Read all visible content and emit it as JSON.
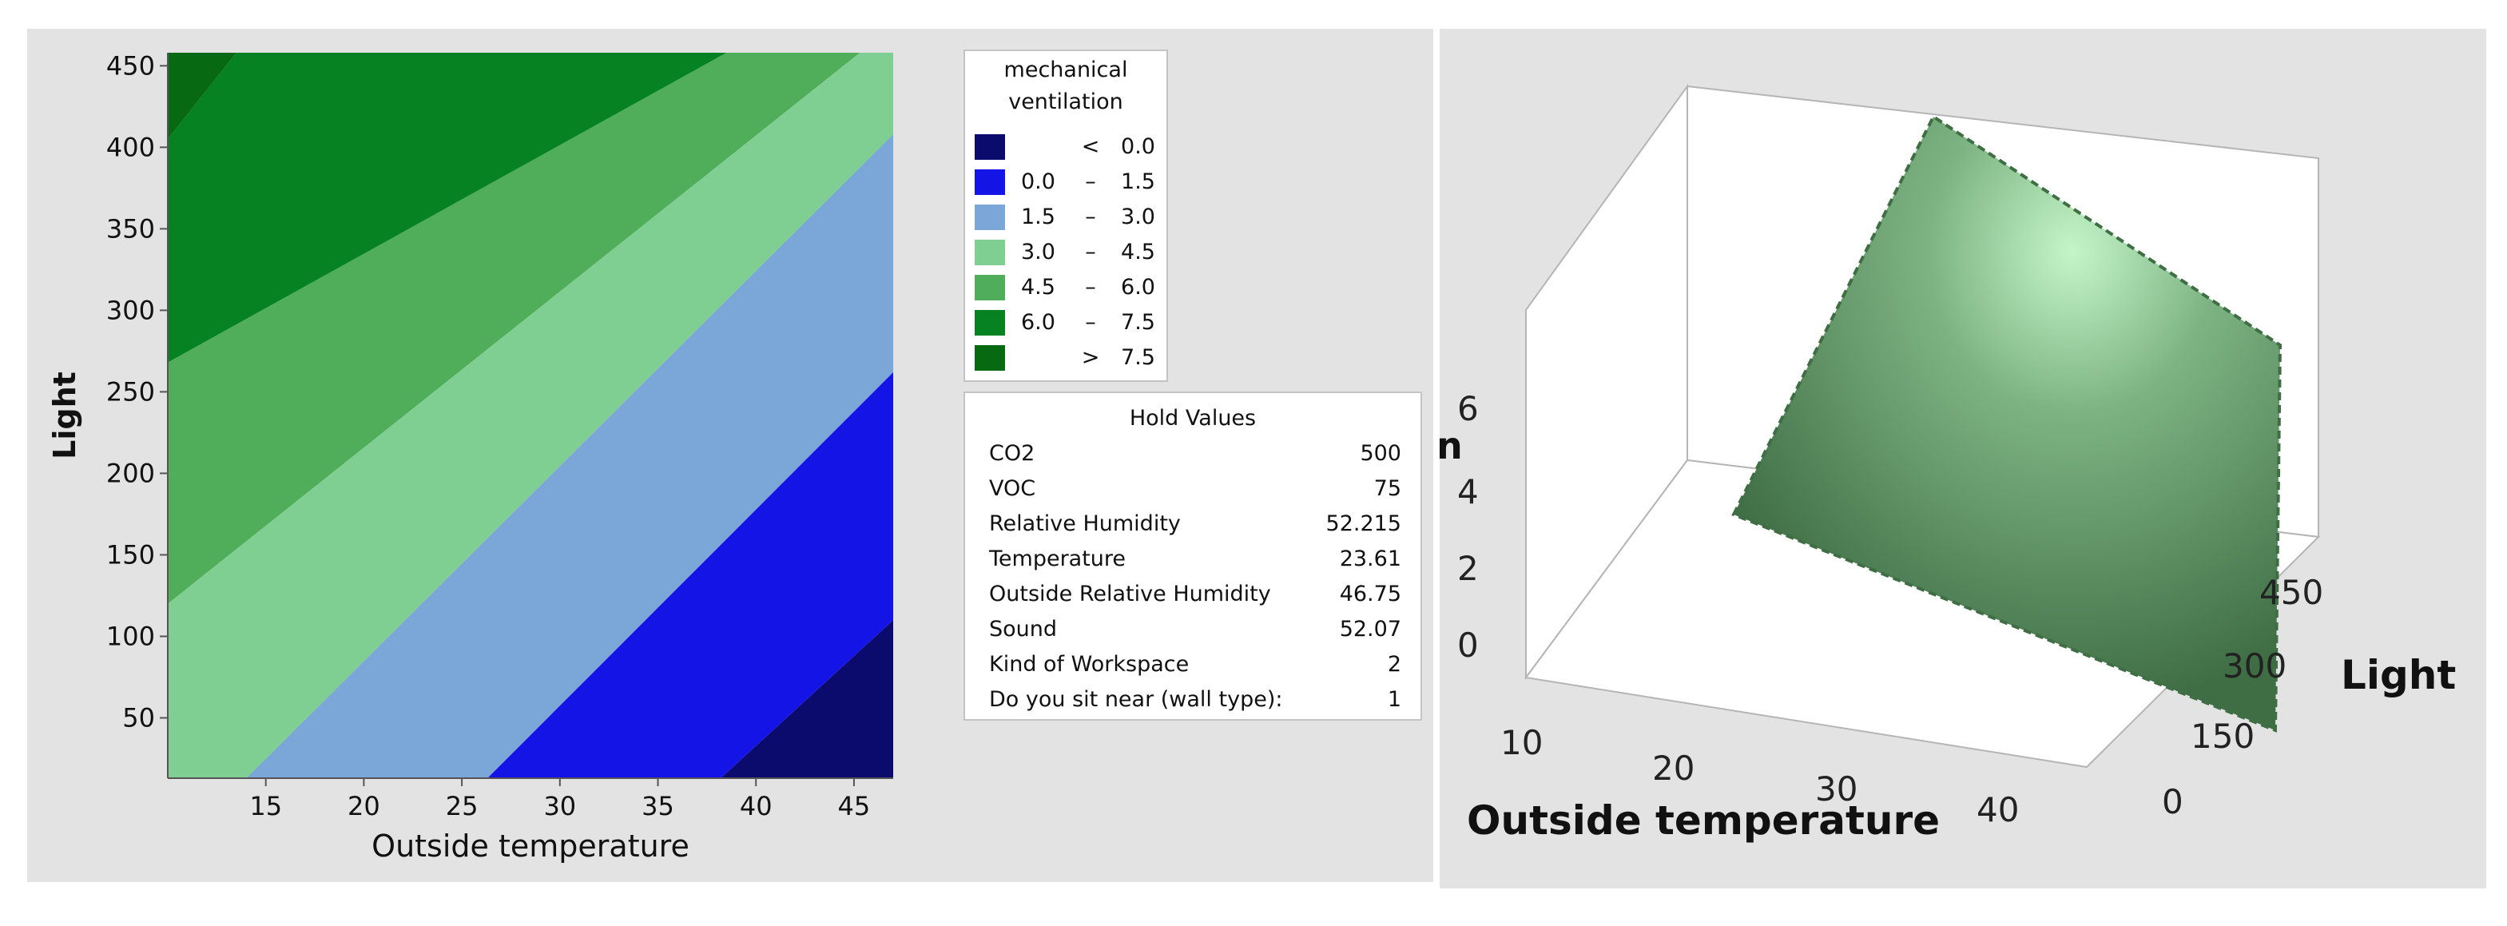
{
  "contour": {
    "xlabel": "Outside temperature",
    "ylabel": "Light",
    "xticks": [
      15,
      20,
      25,
      30,
      35,
      40,
      45
    ],
    "yticks": [
      50,
      100,
      150,
      200,
      250,
      300,
      350,
      400,
      450
    ],
    "legend": {
      "title_line1": "mechanical",
      "title_line2": "ventilation",
      "rows": [
        {
          "lo": "",
          "op": "<",
          "hi": "0.0",
          "color": "#0b0b6e"
        },
        {
          "lo": "0.0",
          "op": "–",
          "hi": "1.5",
          "color": "#1414e6"
        },
        {
          "lo": "1.5",
          "op": "–",
          "hi": "3.0",
          "color": "#7aa6d8"
        },
        {
          "lo": "3.0",
          "op": "–",
          "hi": "4.5",
          "color": "#80cf92"
        },
        {
          "lo": "4.5",
          "op": "–",
          "hi": "6.0",
          "color": "#50ae5a"
        },
        {
          "lo": "6.0",
          "op": "–",
          "hi": "7.5",
          "color": "#078223"
        },
        {
          "lo": "",
          "op": ">",
          "hi": "7.5",
          "color": "#076a12"
        }
      ]
    },
    "hold_values": {
      "title": "Hold Values",
      "rows": [
        {
          "name": "CO2",
          "value": "500"
        },
        {
          "name": "VOC",
          "value": "75"
        },
        {
          "name": "Relative Humidity",
          "value": "52.215"
        },
        {
          "name": "Temperature",
          "value": "23.61"
        },
        {
          "name": "Outside Relative Humidity",
          "value": "46.75"
        },
        {
          "name": "Sound",
          "value": "52.07"
        },
        {
          "name": "Kind of Workspace",
          "value": "2"
        },
        {
          "name": "Do you sit near  (wall type):",
          "value": "1"
        }
      ]
    }
  },
  "surface": {
    "xlabel": "Outside temperature",
    "ylabel": "Light",
    "zlabel_fragment": "n",
    "xticks": [
      "10",
      "20",
      "30",
      "40"
    ],
    "yticks": [
      "0",
      "150",
      "300",
      "450"
    ],
    "zticks": [
      "0",
      "2",
      "4",
      "6"
    ],
    "surface_color": "#4f8a55"
  },
  "chart_data": [
    {
      "type": "heatmap",
      "subtype": "contour",
      "xlabel": "Outside temperature",
      "ylabel": "Light",
      "xlim": [
        10,
        47
      ],
      "ylim": [
        13,
        458
      ],
      "z_label": "mechanical ventilation",
      "z_bins": [
        "< 0.0",
        "0.0 – 1.5",
        "1.5 – 3.0",
        "3.0 – 4.5",
        "4.5 – 6.0",
        "6.0 – 7.5",
        "> 7.5"
      ],
      "boundaries": [
        {
          "level": 0.0,
          "points": [
            [
              38.2,
              13
            ],
            [
              47,
              110
            ]
          ]
        },
        {
          "level": 1.5,
          "points": [
            [
              26.3,
              13
            ],
            [
              47,
              262
            ]
          ]
        },
        {
          "level": 3.0,
          "points": [
            [
              14.0,
              13
            ],
            [
              47,
              408
            ]
          ]
        },
        {
          "level": 4.5,
          "points": [
            [
              10,
              120
            ],
            [
              45.3,
              458
            ]
          ]
        },
        {
          "level": 6.0,
          "points": [
            [
              10,
              268
            ],
            [
              38.5,
              458
            ]
          ]
        },
        {
          "level": 7.5,
          "points": [
            [
              10,
              405
            ],
            [
              13.5,
              458
            ]
          ]
        }
      ]
    },
    {
      "type": "surface",
      "xlabel": "Outside temperature",
      "ylabel": "Light",
      "xlim": [
        10,
        47
      ],
      "ylim": [
        0,
        458
      ],
      "zlim": [
        0,
        7
      ],
      "z_at_corners": [
        {
          "x": 10,
          "y": 0,
          "z": 3.0
        },
        {
          "x": 47,
          "y": 0,
          "z": -1.5
        },
        {
          "x": 47,
          "y": 458,
          "z": 4.5
        },
        {
          "x": 10,
          "y": 458,
          "z": 8.5
        }
      ]
    }
  ]
}
